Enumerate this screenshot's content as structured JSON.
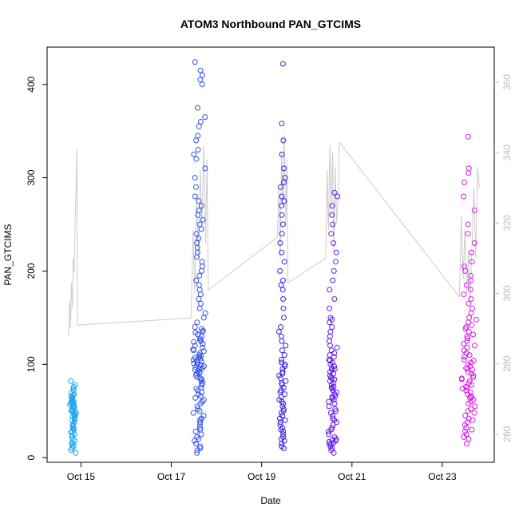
{
  "chart_data": {
    "type": "scatter",
    "title": "ATOM3 Northbound PAN_GTCIMS",
    "xlabel": "Date",
    "ylabel": "PAN_GTCIMS",
    "x_ticks": [
      "Oct 15",
      "Oct 17",
      "Oct 19",
      "Oct 21",
      "Oct 23"
    ],
    "x_tick_days": [
      15,
      17,
      19,
      21,
      23
    ],
    "xlim_days": [
      14.25,
      24.15
    ],
    "ylim": [
      -5,
      440
    ],
    "y_ticks": [
      0,
      100,
      200,
      300,
      400
    ],
    "y2lim": [
      252,
      370
    ],
    "y2_ticks": [
      260,
      280,
      300,
      320,
      340,
      360
    ],
    "grid": false,
    "legend": "none",
    "series": [
      {
        "type": "scatter",
        "color_gradient": [
          "#22a8f0",
          "#2f64f0",
          "#3a1ee0",
          "#7a18e8",
          "#e21ae8"
        ],
        "clusters": [
          {
            "day_start": 14.72,
            "day_end": 14.92,
            "y_values": [
              5,
              8,
              10,
              12,
              13,
              15,
              16,
              18,
              20,
              22,
              24,
              25,
              27,
              28,
              30,
              31,
              32,
              34,
              35,
              36,
              38,
              40,
              41,
              42,
              43,
              44,
              45,
              46,
              47,
              48,
              49,
              50,
              50,
              51,
              52,
              53,
              54,
              55,
              55,
              56,
              57,
              58,
              58,
              59,
              60,
              60,
              61,
              62,
              63,
              64,
              65,
              66,
              67,
              68,
              70,
              72,
              74,
              76,
              78,
              82
            ]
          },
          {
            "day_start": 17.42,
            "day_end": 17.82,
            "y_values": [
              5,
              8,
              10,
              12,
              15,
              18,
              20,
              22,
              25,
              28,
              30,
              32,
              35,
              38,
              40,
              42,
              45,
              48,
              50,
              52,
              55,
              58,
              60,
              62,
              64,
              66,
              68,
              70,
              72,
              74,
              75,
              78,
              80,
              82,
              84,
              85,
              86,
              88,
              90,
              91,
              92,
              93,
              94,
              95,
              96,
              97,
              98,
              99,
              100,
              101,
              102,
              103,
              104,
              105,
              106,
              107,
              108,
              109,
              110,
              112,
              114,
              115,
              116,
              118,
              120,
              122,
              124,
              125,
              126,
              128,
              130,
              132,
              134,
              135,
              136,
              138,
              140,
              145,
              150,
              155,
              160,
              165,
              170,
              175,
              180,
              185,
              190,
              195,
              200,
              205,
              210,
              215,
              220,
              225,
              230,
              235,
              240,
              245,
              250,
              255,
              260,
              265,
              270,
              275,
              280,
              290,
              300,
              310,
              320,
              325,
              330,
              340,
              345,
              355,
              360,
              365,
              375,
              400,
              405,
              410,
              415,
              424
            ]
          },
          {
            "day_start": 19.35,
            "day_end": 19.58,
            "y_values": [
              10,
              12,
              15,
              18,
              20,
              22,
              25,
              28,
              30,
              32,
              35,
              38,
              40,
              42,
              45,
              48,
              50,
              52,
              55,
              58,
              60,
              62,
              65,
              68,
              70,
              72,
              75,
              78,
              80,
              82,
              85,
              88,
              90,
              92,
              95,
              98,
              100,
              102,
              105,
              110,
              115,
              120,
              125,
              130,
              135,
              140,
              150,
              160,
              170,
              180,
              185,
              190,
              200,
              210,
              220,
              230,
              240,
              250,
              260,
              270,
              275,
              280,
              290,
              295,
              300,
              310,
              325,
              340,
              358,
              422
            ]
          },
          {
            "day_start": 20.42,
            "day_end": 20.72,
            "y_values": [
              5,
              8,
              10,
              12,
              14,
              15,
              16,
              17,
              18,
              19,
              20,
              22,
              25,
              28,
              30,
              32,
              35,
              38,
              40,
              42,
              45,
              48,
              50,
              52,
              55,
              58,
              60,
              62,
              64,
              65,
              66,
              68,
              70,
              72,
              74,
              75,
              76,
              78,
              80,
              82,
              84,
              85,
              86,
              88,
              90,
              92,
              94,
              95,
              96,
              98,
              100,
              102,
              104,
              105,
              108,
              110,
              112,
              115,
              118,
              120,
              125,
              130,
              135,
              140,
              145,
              148,
              150,
              160,
              170,
              180,
              190,
              200,
              210,
              220,
              230,
              240,
              250,
              260,
              270,
              280,
              284
            ]
          },
          {
            "day_start": 23.38,
            "day_end": 23.82,
            "y_values": [
              15,
              20,
              22,
              25,
              28,
              30,
              32,
              35,
              38,
              40,
              42,
              45,
              48,
              50,
              52,
              55,
              58,
              60,
              62,
              64,
              65,
              66,
              68,
              70,
              72,
              74,
              75,
              76,
              78,
              80,
              82,
              84,
              85,
              86,
              88,
              90,
              92,
              94,
              95,
              96,
              98,
              100,
              102,
              104,
              105,
              108,
              110,
              112,
              115,
              118,
              120,
              122,
              125,
              128,
              130,
              132,
              135,
              138,
              140,
              142,
              145,
              148,
              150,
              155,
              160,
              165,
              170,
              175,
              180,
              185,
              190,
              195,
              200,
              205,
              210,
              220,
              230,
              240,
              250,
              265,
              280,
              295,
              305,
              310,
              344
            ]
          }
        ]
      },
      {
        "type": "line",
        "axis": "right",
        "color": "#cccccc",
        "segments": [
          {
            "day_start": 14.72,
            "day_end": 14.92,
            "points": [
              [
                14.72,
                288
              ],
              [
                14.75,
                298
              ],
              [
                14.77,
                290
              ],
              [
                14.79,
                303
              ],
              [
                14.81,
                296
              ],
              [
                14.83,
                310
              ],
              [
                14.85,
                306
              ],
              [
                14.87,
                320
              ],
              [
                14.89,
                330
              ],
              [
                14.91,
                341
              ],
              [
                14.92,
                291
              ]
            ]
          },
          {
            "day_start": 14.92,
            "day_end": 17.44,
            "points": [
              [
                14.92,
                291
              ],
              [
                17.44,
                293
              ]
            ]
          },
          {
            "day_start": 17.44,
            "day_end": 17.82,
            "points": [
              [
                17.44,
                293
              ],
              [
                17.48,
                318
              ],
              [
                17.52,
                300
              ],
              [
                17.56,
                328
              ],
              [
                17.6,
                310
              ],
              [
                17.64,
                335
              ],
              [
                17.68,
                320
              ],
              [
                17.72,
                342
              ],
              [
                17.76,
                314
              ],
              [
                17.79,
                338
              ],
              [
                17.82,
                301
              ]
            ]
          },
          {
            "day_start": 17.82,
            "day_end": 19.35,
            "points": [
              [
                17.82,
                301
              ],
              [
                19.35,
                316
              ]
            ]
          },
          {
            "day_start": 19.35,
            "day_end": 19.58,
            "points": [
              [
                19.35,
                316
              ],
              [
                19.38,
                330
              ],
              [
                19.41,
                310
              ],
              [
                19.44,
                340
              ],
              [
                19.47,
                325
              ],
              [
                19.5,
                345
              ],
              [
                19.53,
                320
              ],
              [
                19.56,
                338
              ],
              [
                19.58,
                303
              ]
            ]
          },
          {
            "day_start": 19.58,
            "day_end": 20.42,
            "points": [
              [
                19.58,
                303
              ],
              [
                20.42,
                310
              ]
            ]
          },
          {
            "day_start": 20.42,
            "day_end": 20.72,
            "points": [
              [
                20.42,
                310
              ],
              [
                20.45,
                335
              ],
              [
                20.48,
                318
              ],
              [
                20.51,
                342
              ],
              [
                20.54,
                322
              ],
              [
                20.57,
                340
              ],
              [
                20.6,
                312
              ],
              [
                20.63,
                336
              ],
              [
                20.66,
                320
              ],
              [
                20.7,
                328
              ],
              [
                20.72,
                343
              ]
            ]
          },
          {
            "day_start": 20.72,
            "day_end": 23.38,
            "points": [
              [
                20.72,
                343
              ],
              [
                23.38,
                299
              ]
            ]
          },
          {
            "day_start": 23.38,
            "day_end": 23.82,
            "points": [
              [
                23.38,
                299
              ],
              [
                23.42,
                322
              ],
              [
                23.46,
                304
              ],
              [
                23.5,
                318
              ],
              [
                23.54,
                300
              ],
              [
                23.58,
                312
              ],
              [
                23.62,
                298
              ],
              [
                23.66,
                315
              ],
              [
                23.7,
                330
              ],
              [
                23.74,
                310
              ],
              [
                23.78,
                336
              ],
              [
                23.82,
                330
              ]
            ]
          }
        ]
      }
    ]
  }
}
